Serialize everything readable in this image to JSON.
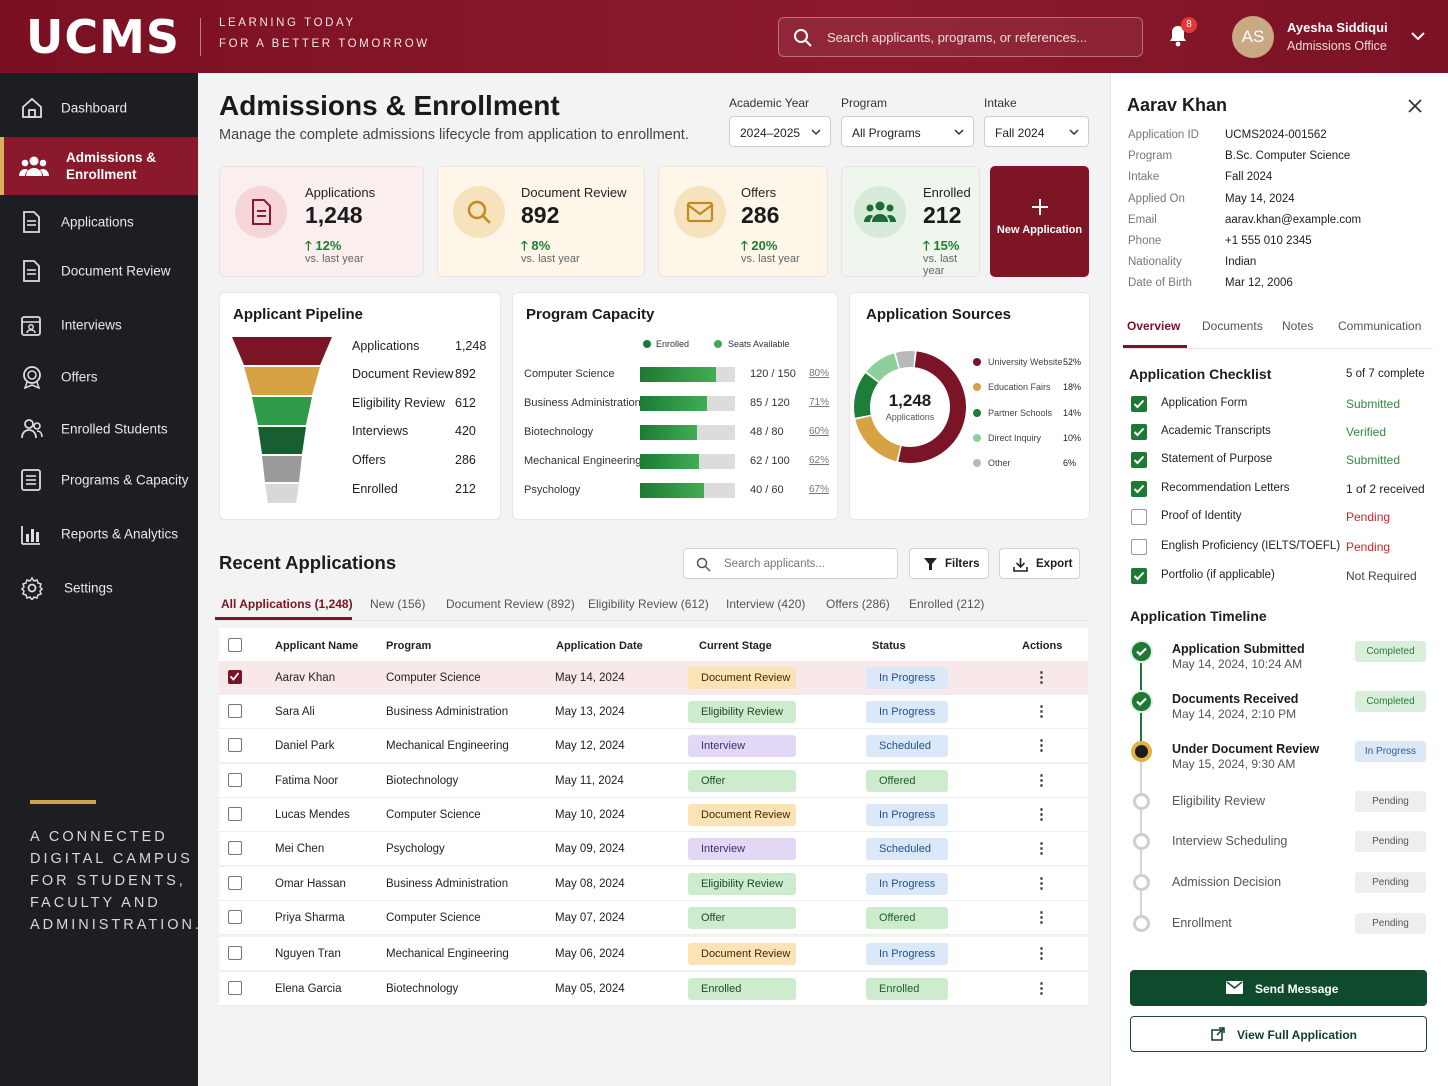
{
  "header": {
    "logo": "UCMS",
    "tagline1": "LEARNING TODAY",
    "tagline2": "FOR A BETTER TOMORROW",
    "search_placeholder": "Search applicants, programs, or references...",
    "notif_count": "8",
    "user_initials": "AS",
    "user_name": "Ayesha Siddiqui",
    "user_role": "Admissions Office"
  },
  "sidebar": {
    "items": [
      {
        "label": "Dashboard",
        "icon": "home-icon"
      },
      {
        "label": "Admissions & Enrollment",
        "icon": "users-icon"
      },
      {
        "label": "Applications",
        "icon": "document-icon"
      },
      {
        "label": "Document Review",
        "icon": "document-icon"
      },
      {
        "label": "Interviews",
        "icon": "calendar-user-icon"
      },
      {
        "label": "Offers",
        "icon": "award-icon"
      },
      {
        "label": "Enrolled Students",
        "icon": "students-icon"
      },
      {
        "label": "Programs & Capacity",
        "icon": "list-icon"
      },
      {
        "label": "Reports & Analytics",
        "icon": "bar-chart-icon"
      },
      {
        "label": "Settings",
        "icon": "gear-icon"
      }
    ],
    "tagline": [
      "A CONNECTED",
      "DIGITAL CAMPUS",
      "FOR STUDENTS,",
      "FACULTY AND",
      "ADMINISTRATION."
    ]
  },
  "page": {
    "title": "Admissions & Enrollment",
    "subtitle": "Manage the complete admissions lifecycle from application to enrollment."
  },
  "filters": {
    "year_label": "Academic Year",
    "year_value": "2024–2025",
    "program_label": "Program",
    "program_value": "All Programs",
    "intake_label": "Intake",
    "intake_value": "Fall 2024"
  },
  "kpis": [
    {
      "label": "Applications",
      "value": "1,248",
      "change": "12%",
      "sub": "vs. last year"
    },
    {
      "label": "Document Review",
      "value": "892",
      "change": "8%",
      "sub": "vs. last year"
    },
    {
      "label": "Offers",
      "value": "286",
      "change": "20%",
      "sub": "vs. last year"
    },
    {
      "label": "Enrolled",
      "value": "212",
      "change": "15%",
      "sub": "vs. last year"
    }
  ],
  "new_application": "New Application",
  "pipeline": {
    "title": "Applicant Pipeline",
    "stages": [
      {
        "label": "Applications",
        "value": "1,248"
      },
      {
        "label": "Document Review",
        "value": "892"
      },
      {
        "label": "Eligibility Review",
        "value": "612"
      },
      {
        "label": "Interviews",
        "value": "420"
      },
      {
        "label": "Offers",
        "value": "286"
      },
      {
        "label": "Enrolled",
        "value": "212"
      }
    ]
  },
  "capacity": {
    "title": "Program Capacity",
    "legend_enrolled": "Enrolled",
    "legend_seats": "Seats Available",
    "rows": [
      {
        "name": "Computer Science",
        "ratio": "120 / 150",
        "pct": "80%",
        "fill": 0.8
      },
      {
        "name": "Business Administration",
        "ratio": "85 / 120",
        "pct": "71%",
        "fill": 0.71
      },
      {
        "name": "Biotechnology",
        "ratio": "48 / 80",
        "pct": "60%",
        "fill": 0.6
      },
      {
        "name": "Mechanical Engineering",
        "ratio": "62 / 100",
        "pct": "62%",
        "fill": 0.62
      },
      {
        "name": "Psychology",
        "ratio": "40 / 60",
        "pct": "67%",
        "fill": 0.67
      }
    ]
  },
  "sources": {
    "title": "Application Sources",
    "total": "1,248",
    "total_label": "Applications",
    "items": [
      {
        "name": "University Website",
        "pct": "52%",
        "value": 52,
        "color": "#7a1426"
      },
      {
        "name": "Education Fairs",
        "pct": "18%",
        "value": 18,
        "color": "#d6a243"
      },
      {
        "name": "Partner Schools",
        "pct": "14%",
        "value": 14,
        "color": "#1f7d3a"
      },
      {
        "name": "Direct Inquiry",
        "pct": "10%",
        "value": 10,
        "color": "#8fd09a"
      },
      {
        "name": "Other",
        "pct": "6%",
        "value": 6,
        "color": "#b9b9b9"
      }
    ]
  },
  "recent": {
    "title": "Recent Applications",
    "search_placeholder": "Search applicants...",
    "filters": "Filters",
    "export": "Export",
    "tabs": [
      "All Applications (1,248)",
      "New (156)",
      "Document Review (892)",
      "Eligibility Review (612)",
      "Interview (420)",
      "Offers (286)",
      "Enrolled (212)"
    ],
    "columns": [
      "Applicant Name",
      "Program",
      "Application Date",
      "Current Stage",
      "Status",
      "Actions"
    ],
    "rows": [
      {
        "name": "Aarav Khan",
        "program": "Computer Science",
        "date": "May 14, 2024",
        "stage": "Document Review",
        "status": "In Progress"
      },
      {
        "name": "Sara Ali",
        "program": "Business Administration",
        "date": "May 13, 2024",
        "stage": "Eligibility Review",
        "status": "In Progress"
      },
      {
        "name": "Daniel Park",
        "program": "Mechanical Engineering",
        "date": "May 12, 2024",
        "stage": "Interview",
        "status": "Scheduled"
      },
      {
        "name": "Fatima Noor",
        "program": "Biotechnology",
        "date": "May 11, 2024",
        "stage": "Offer",
        "status": "Offered"
      },
      {
        "name": "Lucas Mendes",
        "program": "Computer Science",
        "date": "May 10, 2024",
        "stage": "Document Review",
        "status": "In Progress"
      },
      {
        "name": "Mei Chen",
        "program": "Psychology",
        "date": "May 09, 2024",
        "stage": "Interview",
        "status": "Scheduled"
      },
      {
        "name": "Omar Hassan",
        "program": "Business Administration",
        "date": "May 08, 2024",
        "stage": "Eligibility Review",
        "status": "In Progress"
      },
      {
        "name": "Priya Sharma",
        "program": "Computer Science",
        "date": "May 07, 2024",
        "stage": "Offer",
        "status": "Offered"
      },
      {
        "name": "Nguyen Tran",
        "program": "Mechanical Engineering",
        "date": "May 06, 2024",
        "stage": "Document Review",
        "status": "In Progress"
      },
      {
        "name": "Elena Garcia",
        "program": "Biotechnology",
        "date": "May 05, 2024",
        "stage": "Enrolled",
        "status": "Enrolled"
      }
    ]
  },
  "detail": {
    "name": "Aarav Khan",
    "fields": [
      {
        "label": "Application ID",
        "value": "UCMS2024-001562"
      },
      {
        "label": "Program",
        "value": "B.Sc. Computer Science"
      },
      {
        "label": "Intake",
        "value": "Fall 2024"
      },
      {
        "label": "Applied On",
        "value": "May 14, 2024"
      },
      {
        "label": "Email",
        "value": "aarav.khan@example.com"
      },
      {
        "label": "Phone",
        "value": "+1 555 010 2345"
      },
      {
        "label": "Nationality",
        "value": "Indian"
      },
      {
        "label": "Date of Birth",
        "value": "Mar 12, 2006"
      }
    ],
    "tabs": [
      "Overview",
      "Documents",
      "Notes",
      "Communication"
    ],
    "checklist_title": "Application Checklist",
    "checklist_count": "5 of 7 complete",
    "checklist": [
      {
        "label": "Application Form",
        "status": "Submitted",
        "done": true
      },
      {
        "label": "Academic Transcripts",
        "status": "Verified",
        "done": true
      },
      {
        "label": "Statement of Purpose",
        "status": "Submitted",
        "done": true
      },
      {
        "label": "Recommendation Letters",
        "status": "1 of 2 received",
        "done": true
      },
      {
        "label": "Proof of Identity",
        "status": "Pending",
        "done": false
      },
      {
        "label": "English Proficiency (IELTS/TOEFL)",
        "status": "Pending",
        "done": false
      },
      {
        "label": "Portfolio (if applicable)",
        "status": "Not Required",
        "done": true
      }
    ],
    "timeline_title": "Application Timeline",
    "timeline": [
      {
        "label": "Application Submitted",
        "time": "May 14, 2024, 10:24 AM",
        "status": "Completed"
      },
      {
        "label": "Documents Received",
        "time": "May 14, 2024, 2:10 PM",
        "status": "Completed"
      },
      {
        "label": "Under Document Review",
        "time": "May 15, 2024, 9:30 AM",
        "status": "In Progress"
      },
      {
        "label": "Eligibility Review",
        "time": "",
        "status": "Pending"
      },
      {
        "label": "Interview Scheduling",
        "time": "",
        "status": "Pending"
      },
      {
        "label": "Admission Decision",
        "time": "",
        "status": "Pending"
      },
      {
        "label": "Enrollment",
        "time": "",
        "status": "Pending"
      }
    ],
    "send_message": "Send Message",
    "view_full": "View Full Application"
  }
}
